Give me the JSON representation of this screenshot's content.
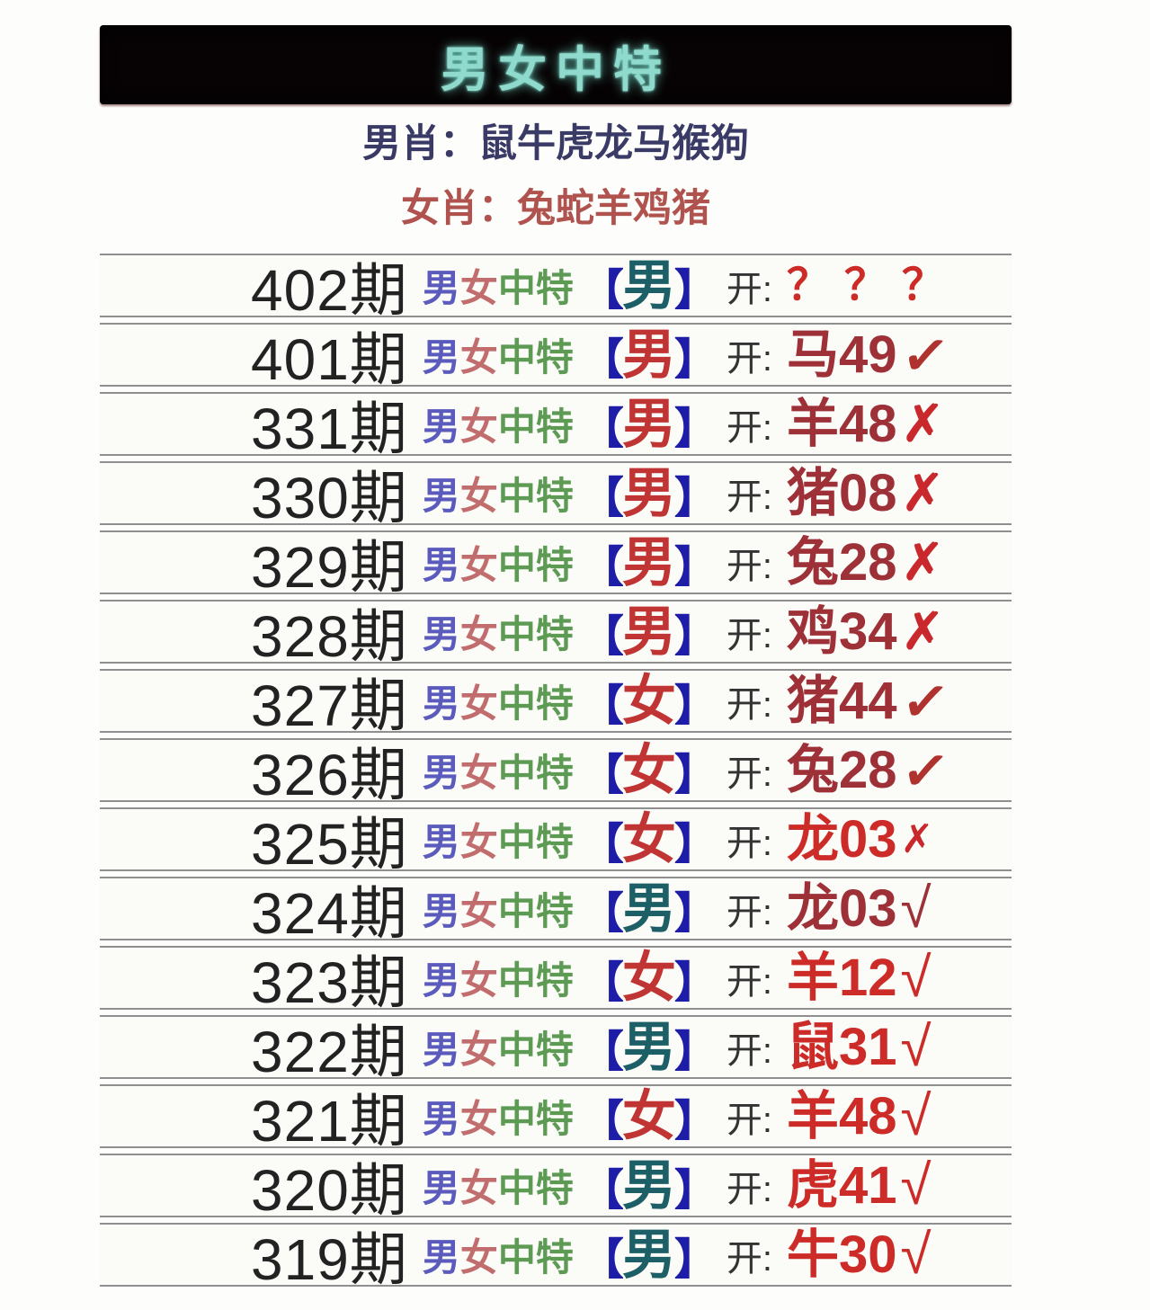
{
  "header": {
    "title": "男女中特"
  },
  "intro": {
    "male_label": "男肖：",
    "male_value": "鼠牛虎龙马猴狗",
    "female_label": "女肖：",
    "female_value": "兔蛇羊鸡猪"
  },
  "labels": {
    "tip_chars": [
      "男",
      "女",
      "中",
      "特"
    ],
    "bracket_open": "【",
    "bracket_close": "】",
    "open_label": "开:"
  },
  "marks": {
    "check_bold": "✓",
    "check_thin": "√",
    "cross_bold": "✗",
    "cross_small": "✗",
    "none": ""
  },
  "colors": {
    "title": "#8fd9cd",
    "male_line": "#3a3a66",
    "female_line": "#b0524e",
    "tip_male": "#5b5bbd",
    "tip_female": "#c26d6d",
    "tip_zhongte": "#5d9b55",
    "bracket": "#1d1da8",
    "sex_teal": "#1c5f66",
    "sex_red": "#c03434",
    "result_dark": "#9e3038",
    "result_bright": "#cc2b28"
  },
  "rows": [
    {
      "period": "402期",
      "sex": "男",
      "sex_color": "teal",
      "result": "？？？",
      "tone": "bright",
      "mark": "none",
      "spaced": true
    },
    {
      "period": "401期",
      "sex": "男",
      "sex_color": "red",
      "result": "马49",
      "tone": "dark",
      "mark": "check_bold"
    },
    {
      "period": "331期",
      "sex": "男",
      "sex_color": "red",
      "result": "羊48",
      "tone": "dark",
      "mark": "cross_bold"
    },
    {
      "period": "330期",
      "sex": "男",
      "sex_color": "red",
      "result": "猪08",
      "tone": "dark",
      "mark": "cross_bold"
    },
    {
      "period": "329期",
      "sex": "男",
      "sex_color": "red",
      "result": "兔28",
      "tone": "dark",
      "mark": "cross_bold"
    },
    {
      "period": "328期",
      "sex": "男",
      "sex_color": "red",
      "result": "鸡34",
      "tone": "dark",
      "mark": "cross_bold"
    },
    {
      "period": "327期",
      "sex": "女",
      "sex_color": "red",
      "result": "猪44",
      "tone": "dark",
      "mark": "check_bold"
    },
    {
      "period": "326期",
      "sex": "女",
      "sex_color": "red",
      "result": "兔28",
      "tone": "dark",
      "mark": "check_bold"
    },
    {
      "period": "325期",
      "sex": "女",
      "sex_color": "red",
      "result": "龙03",
      "tone": "bright",
      "mark": "cross_small"
    },
    {
      "period": "324期",
      "sex": "男",
      "sex_color": "teal",
      "result": "龙03",
      "tone": "dark",
      "mark": "check_thin"
    },
    {
      "period": "323期",
      "sex": "女",
      "sex_color": "red",
      "result": "羊12",
      "tone": "bright",
      "mark": "check_thin"
    },
    {
      "period": "322期",
      "sex": "男",
      "sex_color": "teal",
      "result": "鼠31",
      "tone": "bright",
      "mark": "check_thin"
    },
    {
      "period": "321期",
      "sex": "女",
      "sex_color": "red",
      "result": "羊48",
      "tone": "bright",
      "mark": "check_thin"
    },
    {
      "period": "320期",
      "sex": "男",
      "sex_color": "teal",
      "result": "虎41",
      "tone": "bright",
      "mark": "check_thin"
    },
    {
      "period": "319期",
      "sex": "男",
      "sex_color": "teal",
      "result": "牛30",
      "tone": "bright",
      "mark": "check_thin"
    }
  ]
}
